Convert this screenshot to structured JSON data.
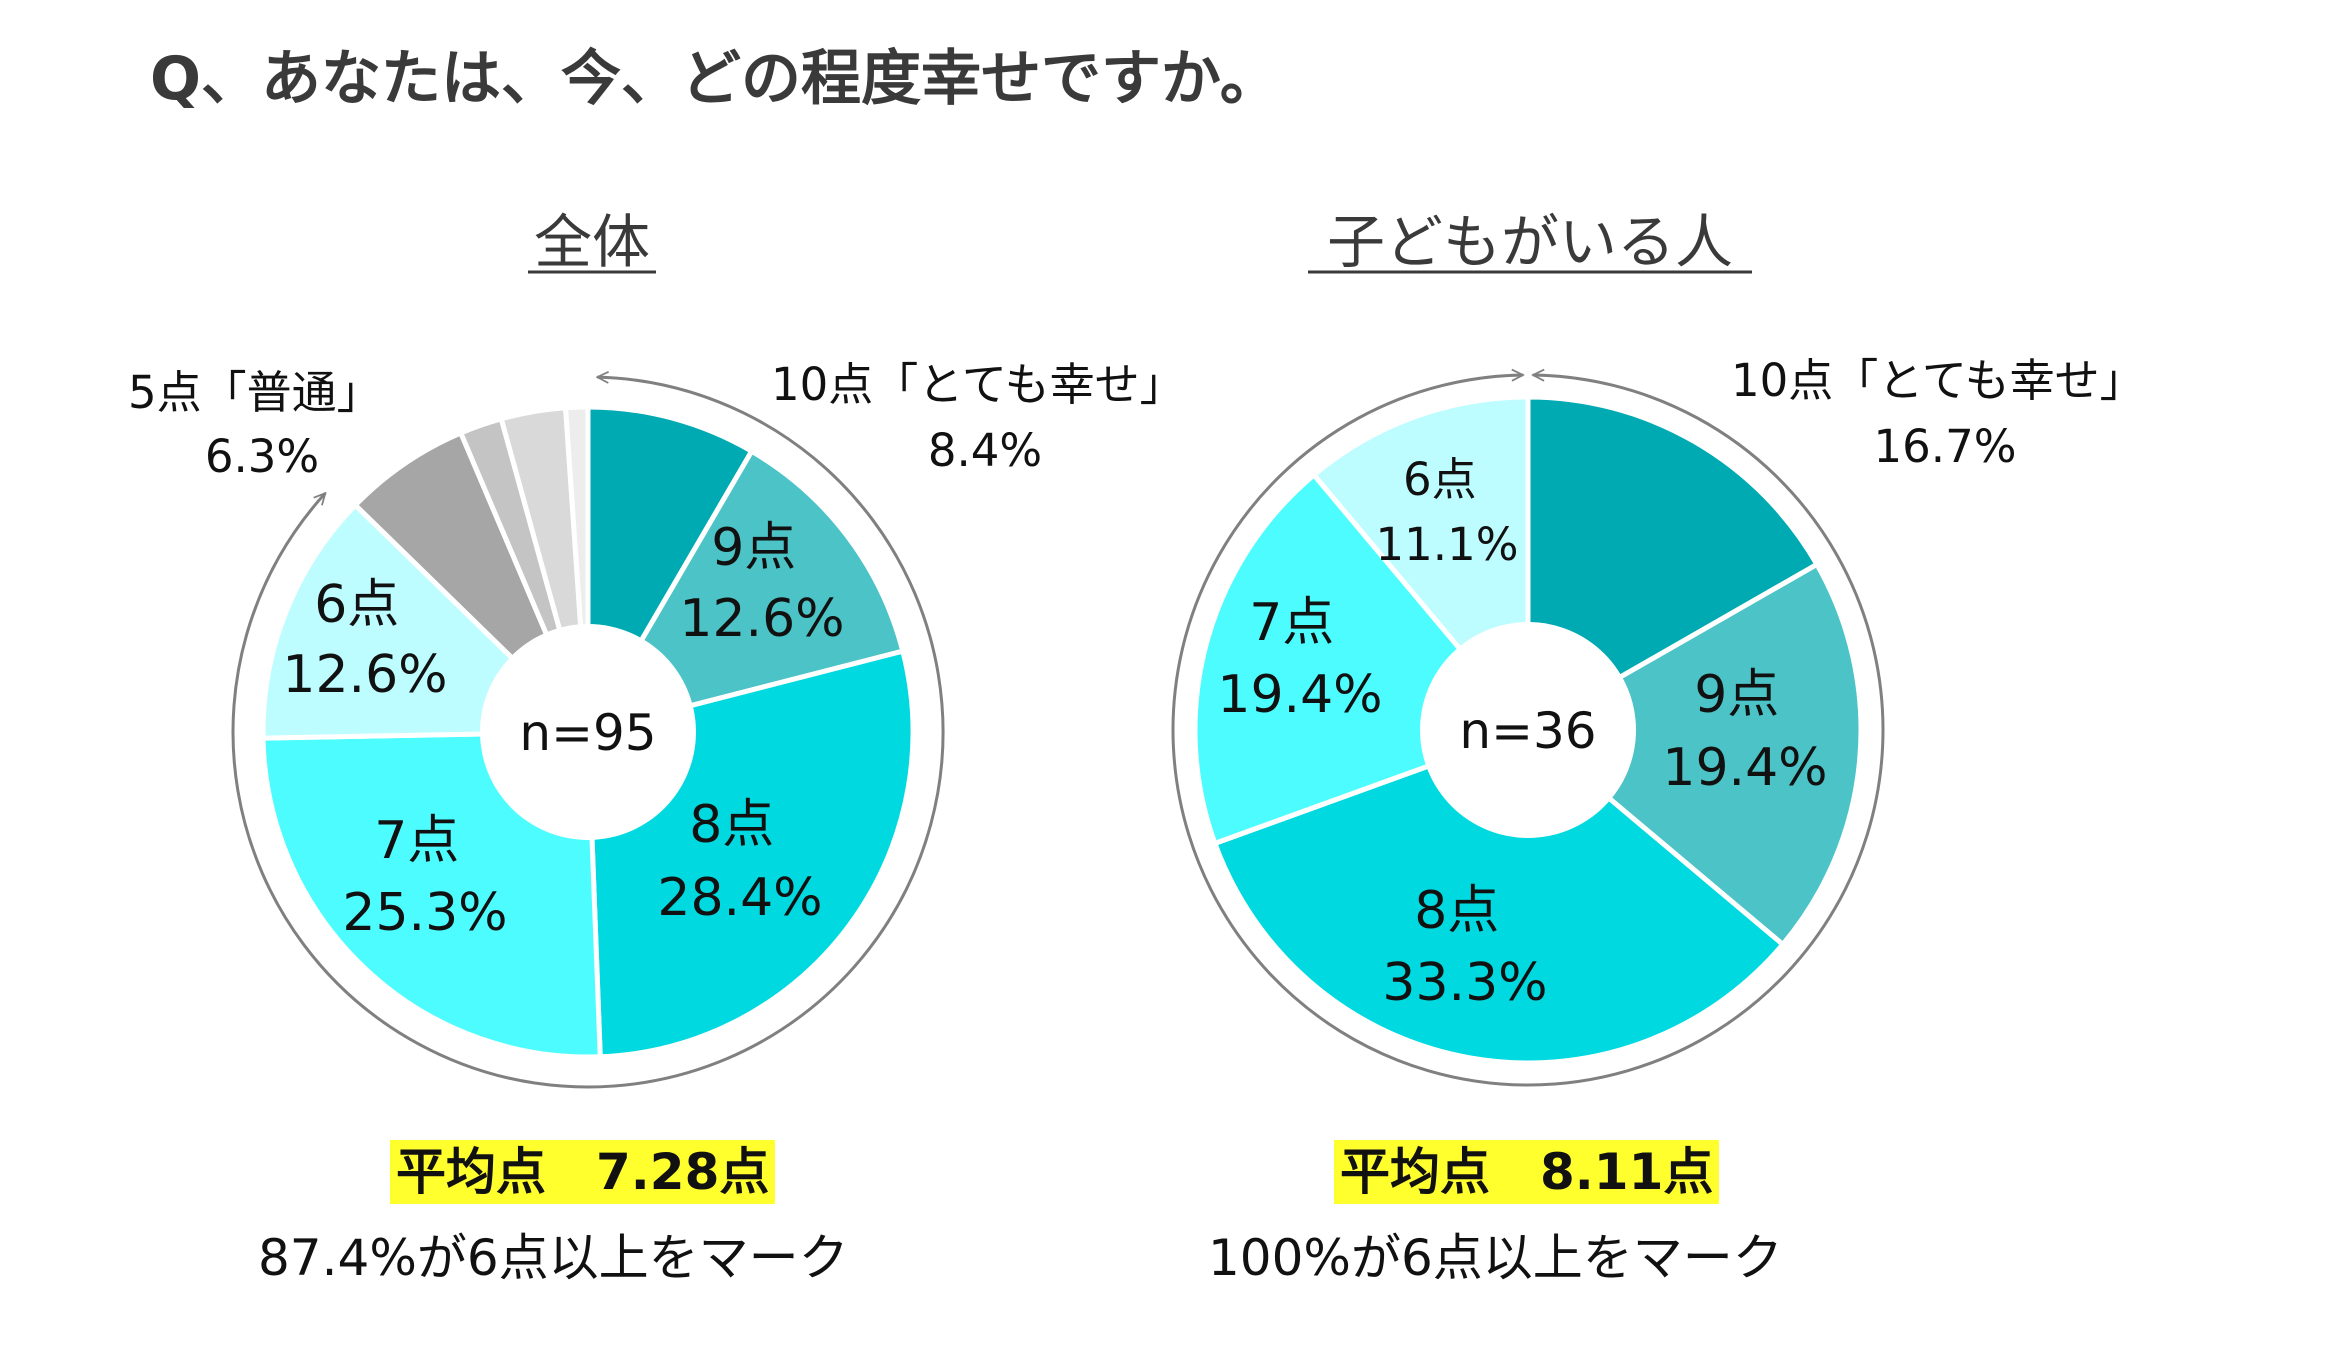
{
  "question": "Q、あなたは、今、どの程度幸せですか。",
  "chart_data": [
    {
      "type": "pie",
      "title": "全体",
      "center_label": "n=95",
      "slices": [
        {
          "label": "10点「とても幸せ」",
          "value": 8.4,
          "value_label": "8.4%",
          "color": "#00aab2"
        },
        {
          "label": "9点",
          "value": 12.6,
          "value_label": "12.6%",
          "color": "#4cc3c6"
        },
        {
          "label": "8点",
          "value": 28.4,
          "value_label": "28.4%",
          "color": "#00d9e0"
        },
        {
          "label": "7点",
          "value": 25.3,
          "value_label": "25.3%",
          "color": "#4dfcff"
        },
        {
          "label": "6点",
          "value": 12.6,
          "value_label": "12.6%",
          "color": "#bdfcff"
        },
        {
          "label": "5点「普通」",
          "value": 6.3,
          "value_label": "6.3%",
          "color": "#a6a6a6"
        },
        {
          "label": "",
          "value": 2.1,
          "value_label": "",
          "color": "#c4c4c4"
        },
        {
          "label": "",
          "value": 3.2,
          "value_label": "",
          "color": "#d9d9d9"
        },
        {
          "label": "",
          "value": 1.1,
          "value_label": "",
          "color": "#ededed"
        }
      ],
      "average": "平均点　7.28点",
      "share_text": "87.4%が6点以上をマーク"
    },
    {
      "type": "pie",
      "title": "子どもがいる人",
      "center_label": "n=36",
      "slices": [
        {
          "label": "10点「とても幸せ」",
          "value": 16.7,
          "value_label": "16.7%",
          "color": "#00aab2"
        },
        {
          "label": "9点",
          "value": 19.4,
          "value_label": "19.4%",
          "color": "#4cc3c6"
        },
        {
          "label": "8点",
          "value": 33.3,
          "value_label": "33.3%",
          "color": "#00d9e0"
        },
        {
          "label": "7点",
          "value": 19.4,
          "value_label": "19.4%",
          "color": "#4dfcff"
        },
        {
          "label": "6点",
          "value": 11.1,
          "value_label": "11.1%",
          "color": "#bdfcff"
        }
      ],
      "average": "平均点　8.11点",
      "share_text": "100%が6点以上をマーク"
    }
  ]
}
